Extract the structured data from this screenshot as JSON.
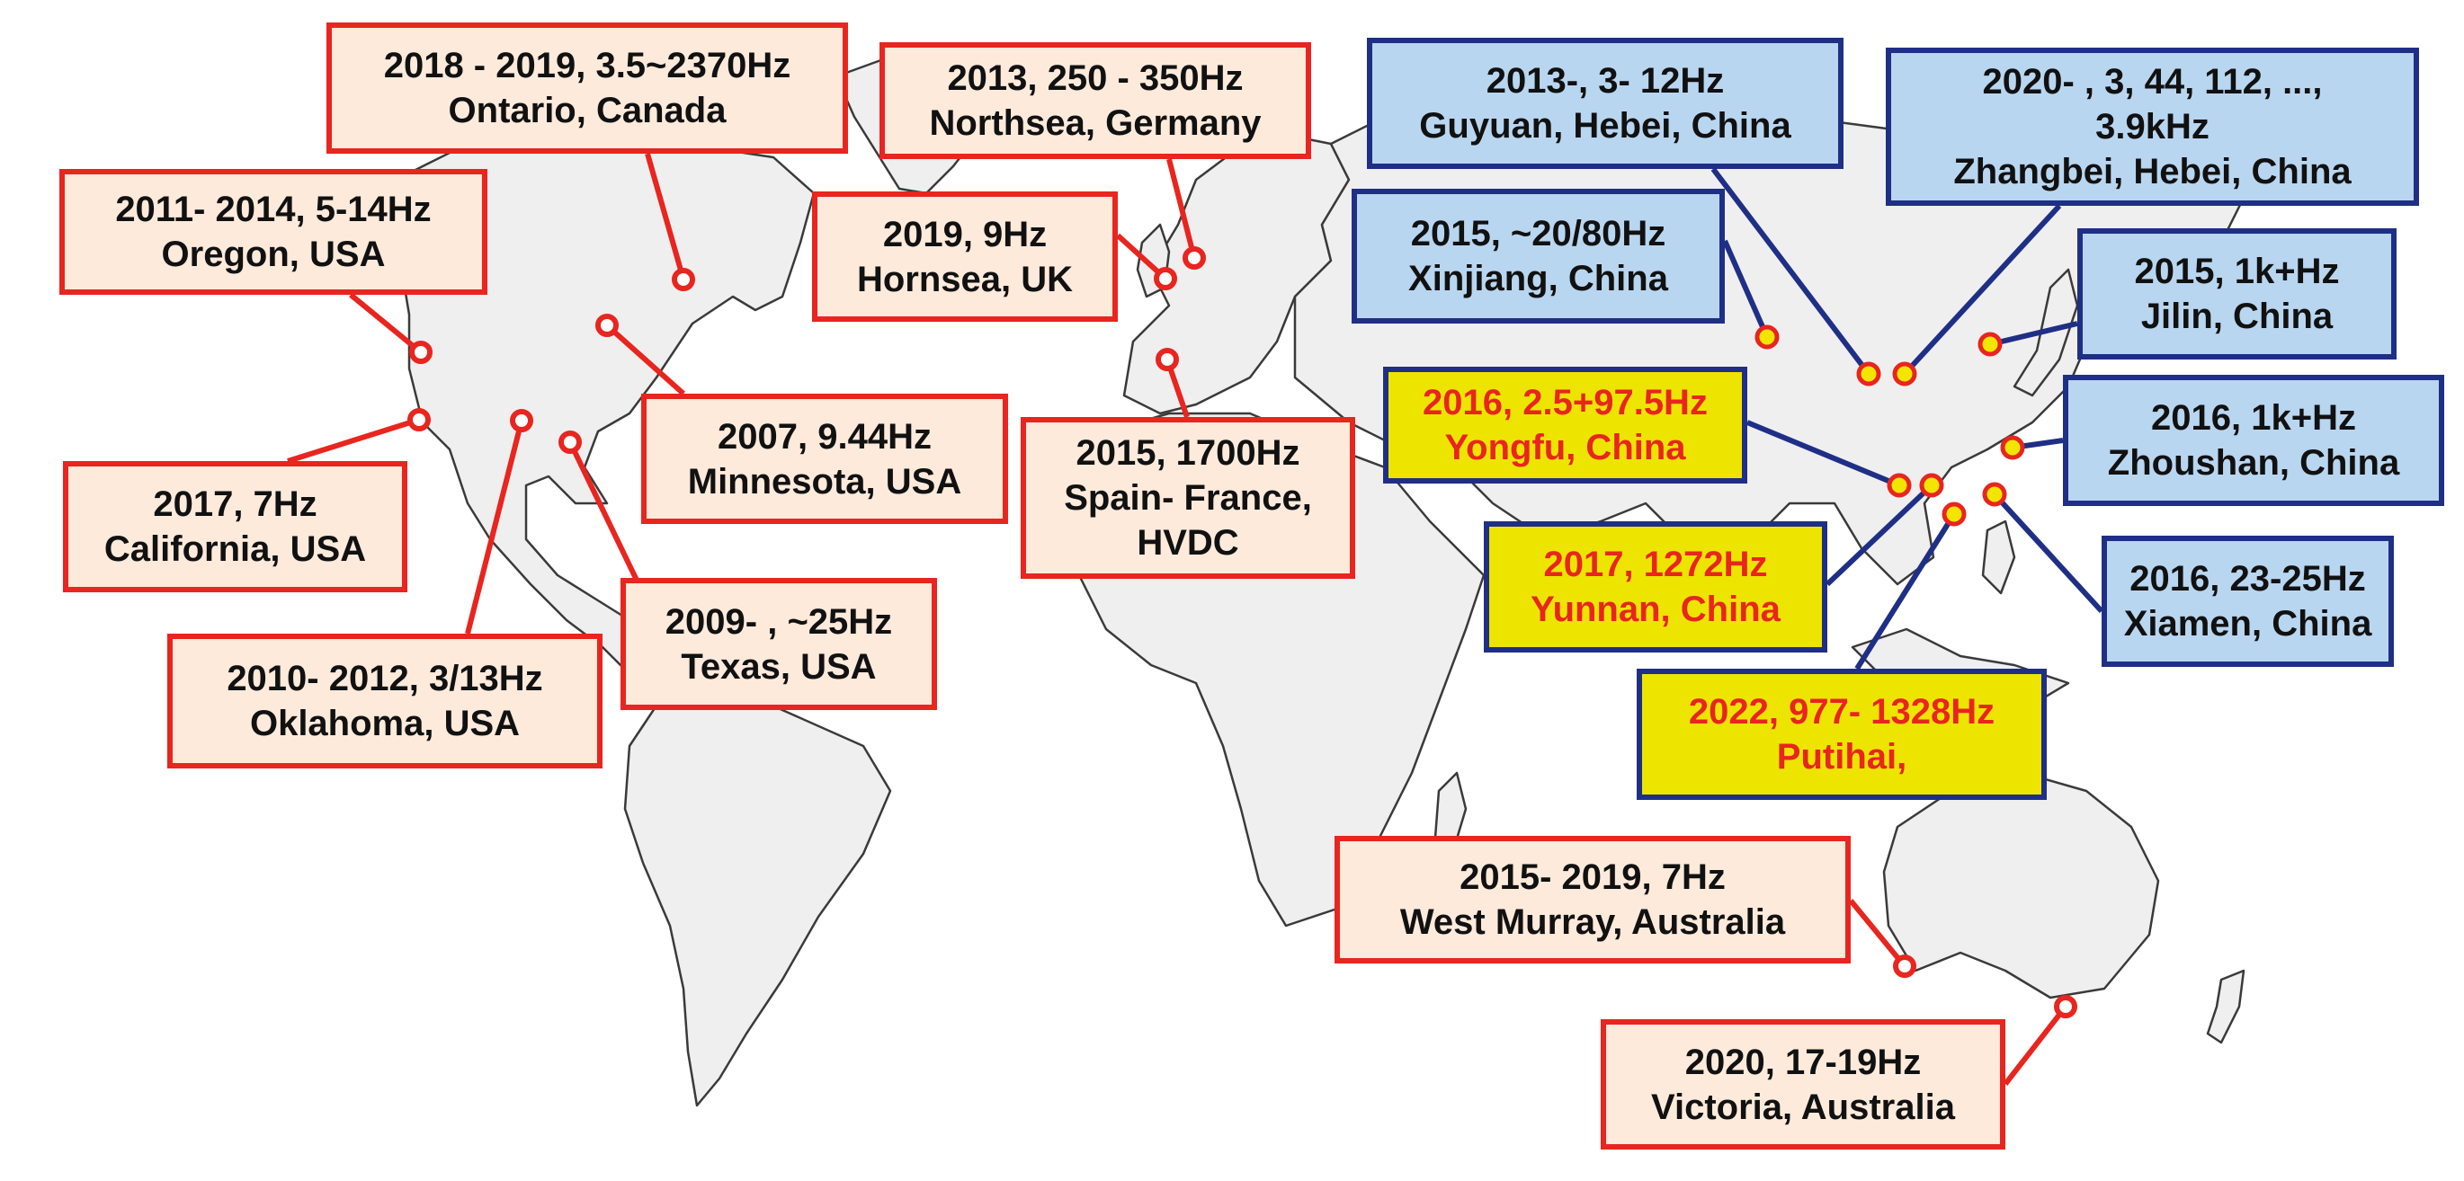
{
  "colors": {
    "land": "#efefef",
    "border_line": "#3a3a3a",
    "red_box_fill": "#fdeadb",
    "red_box_border": "#e8251f",
    "blue_box_fill": "#b9d6f0",
    "blue_box_border": "#1f2f86",
    "yellow_box_fill": "#ede400",
    "yellow_text": "#e8251f",
    "marker_fill": "#f2e600",
    "marker_ring": "#e8251f"
  },
  "events": [
    {
      "id": "ontario",
      "style": "red",
      "line1": "2018 - 2019, 3.5~2370Hz",
      "line2": "Ontario, Canada"
    },
    {
      "id": "northsea",
      "style": "red",
      "line1": "2013, 250 - 350Hz",
      "line2": "Northsea, Germany"
    },
    {
      "id": "oregon",
      "style": "red",
      "line1": "2011- 2014, 5-14Hz",
      "line2": "Oregon, USA"
    },
    {
      "id": "hornsea",
      "style": "red",
      "line1": "2019, 9Hz",
      "line2": "Hornsea, UK"
    },
    {
      "id": "minnesota",
      "style": "red",
      "line1": "2007, 9.44Hz",
      "line2": "Minnesota, USA"
    },
    {
      "id": "california",
      "style": "red",
      "line1": "2017, 7Hz",
      "line2": "California, USA"
    },
    {
      "id": "spain",
      "style": "red",
      "line1": "2015, 1700Hz",
      "line2": "Spain- France,",
      "line3": "HVDC"
    },
    {
      "id": "texas",
      "style": "red",
      "line1": "2009- , ~25Hz",
      "line2": "Texas, USA"
    },
    {
      "id": "oklahoma",
      "style": "red",
      "line1": "2010- 2012, 3/13Hz",
      "line2": "Oklahoma, USA"
    },
    {
      "id": "westmurray",
      "style": "red",
      "line1": "2015- 2019, 7Hz",
      "line2": "West Murray, Australia"
    },
    {
      "id": "victoria",
      "style": "red",
      "line1": "2020, 17-19Hz",
      "line2": "Victoria, Australia"
    },
    {
      "id": "guyuan",
      "style": "blue",
      "line1": "2013-, 3- 12Hz",
      "line2": "Guyuan, Hebei, China"
    },
    {
      "id": "zhangbei",
      "style": "blue",
      "line1": "2020-  , 3, 44, 112, ...,",
      "line2": "3.9kHz",
      "line3": "Zhangbei, Hebei, China"
    },
    {
      "id": "xinjiang",
      "style": "blue",
      "line1": "2015, ~20/80Hz",
      "line2": "Xinjiang, China"
    },
    {
      "id": "jilin",
      "style": "blue",
      "line1": "2015, 1k+Hz",
      "line2": "Jilin, China"
    },
    {
      "id": "zhoushan",
      "style": "blue",
      "line1": "2016, 1k+Hz",
      "line2": "Zhoushan, China"
    },
    {
      "id": "xiamen",
      "style": "blue",
      "line1": "2016, 23-25Hz",
      "line2": "Xiamen, China"
    },
    {
      "id": "yongfu",
      "style": "yellow",
      "line1": "2016, 2.5+97.5Hz",
      "line2": "Yongfu, China"
    },
    {
      "id": "yunnan",
      "style": "yellow",
      "line1": "2017, 1272Hz",
      "line2": "Yunnan, China"
    },
    {
      "id": "putihai",
      "style": "yellow",
      "line1": "2022, 977- 1328Hz",
      "line2": "Putihai,"
    }
  ]
}
